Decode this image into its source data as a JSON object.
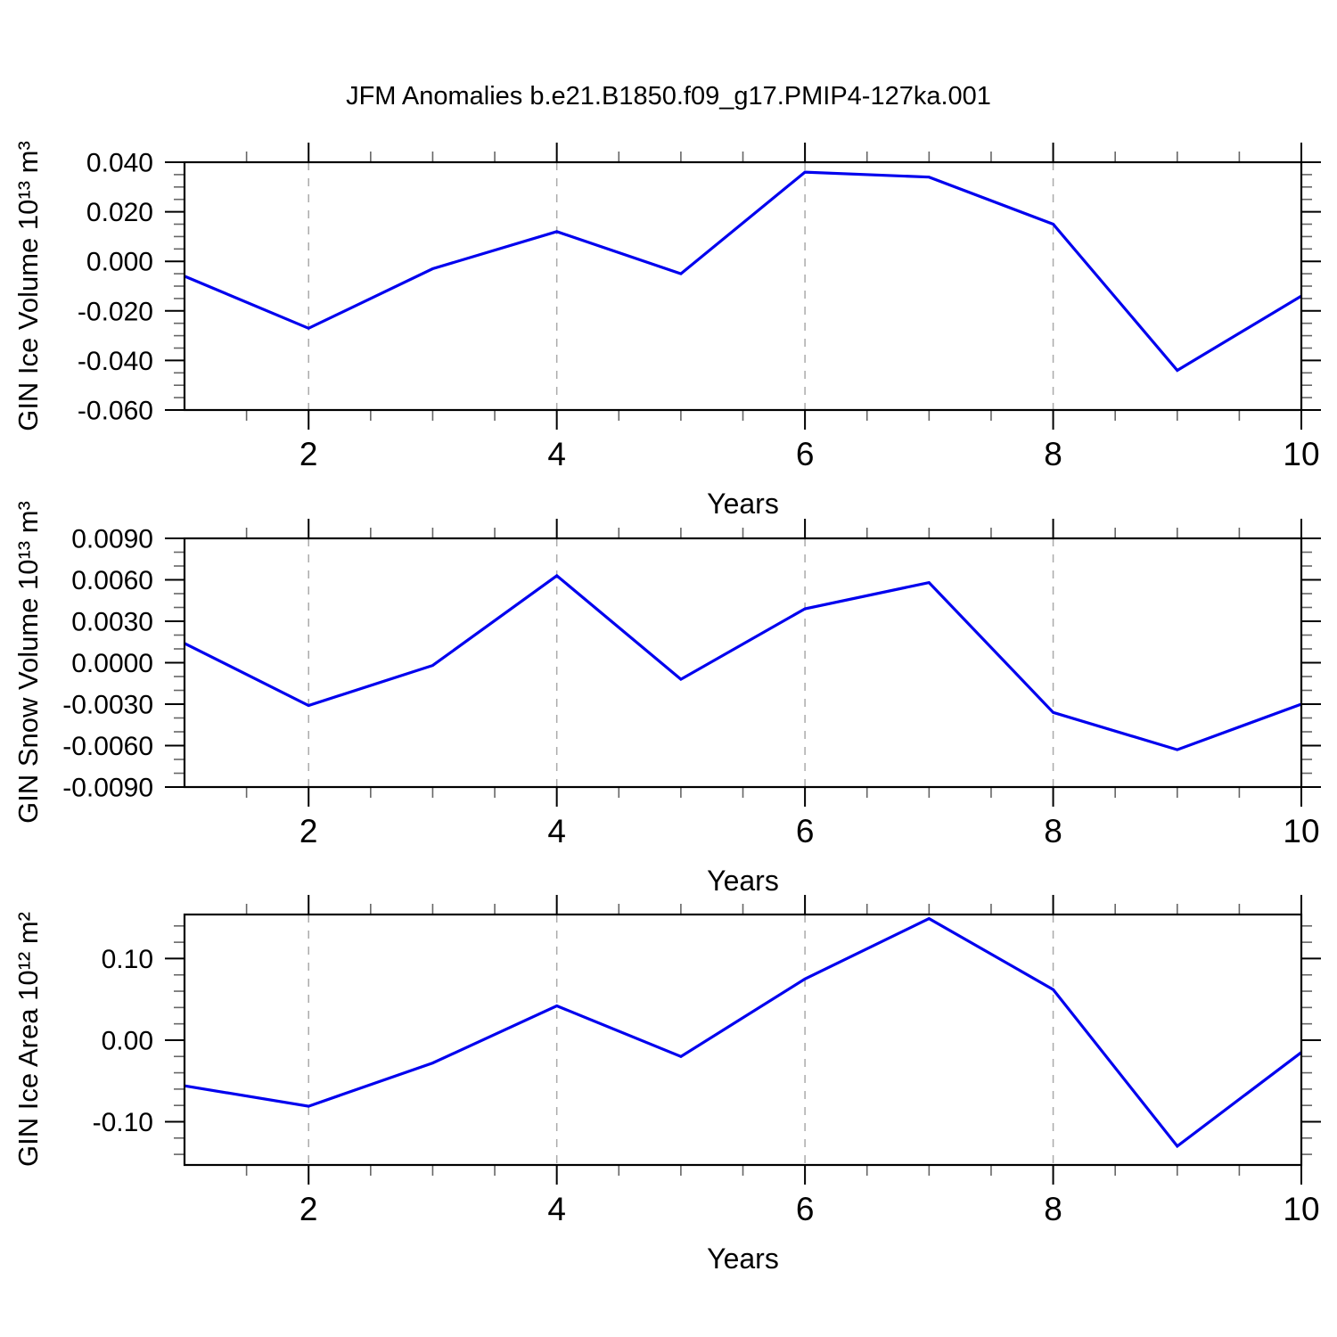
{
  "title": "JFM Anomalies b.e21.B1850.f09_g17.PMIP4-127ka.001",
  "colors": {
    "line": "#0000ee",
    "grid": "#aaaaaa",
    "frame": "#000000",
    "major_tick": "#000000",
    "minor_tick": "#666666",
    "text": "#000000"
  },
  "chart_data": [
    {
      "type": "line",
      "name": "gin-ice-volume",
      "ylabel": "GIN Ice Volume 10¹³ m³",
      "xlabel": "Years",
      "x": [
        1,
        2,
        3,
        4,
        5,
        6,
        7,
        8,
        9,
        10
      ],
      "values": [
        -0.006,
        -0.027,
        -0.003,
        0.012,
        -0.005,
        0.036,
        0.034,
        0.015,
        -0.044,
        -0.014
      ],
      "xlim": [
        1,
        10
      ],
      "ylim": [
        -0.06,
        0.04
      ],
      "yticks": {
        "values": [
          0.04,
          0.02,
          0.0,
          -0.02,
          -0.04,
          -0.06
        ],
        "labels": [
          "0.040",
          "0.020",
          "0.000",
          "-0.020",
          "-0.040",
          "-0.060"
        ]
      },
      "y_minor_step": 0.005,
      "xticks": {
        "values": [
          2,
          4,
          6,
          8,
          10
        ],
        "labels": [
          "2",
          "4",
          "6",
          "8",
          "10"
        ]
      },
      "x_minor_step": 0.5,
      "grid_x": [
        2,
        4,
        6,
        8
      ],
      "grid_style": "dashed",
      "legend": "none"
    },
    {
      "type": "line",
      "name": "gin-snow-volume",
      "ylabel": "GIN Snow Volume 10¹³ m³",
      "xlabel": "Years",
      "x": [
        1,
        2,
        3,
        4,
        5,
        6,
        7,
        8,
        9,
        10
      ],
      "values": [
        0.0014,
        -0.0031,
        -0.0002,
        0.0063,
        -0.0012,
        0.0039,
        0.0058,
        -0.0036,
        -0.0063,
        -0.003
      ],
      "xlim": [
        1,
        10
      ],
      "ylim": [
        -0.009,
        0.009
      ],
      "yticks": {
        "values": [
          0.009,
          0.006,
          0.003,
          0.0,
          -0.003,
          -0.006,
          -0.009
        ],
        "labels": [
          "0.0090",
          "0.0060",
          "0.0030",
          "0.0000",
          "-0.0030",
          "-0.0060",
          "-0.0090"
        ]
      },
      "y_minor_step": 0.001,
      "xticks": {
        "values": [
          2,
          4,
          6,
          8,
          10
        ],
        "labels": [
          "2",
          "4",
          "6",
          "8",
          "10"
        ]
      },
      "x_minor_step": 0.5,
      "grid_x": [
        2,
        4,
        6,
        8
      ],
      "grid_style": "dashed",
      "legend": "none"
    },
    {
      "type": "line",
      "name": "gin-ice-area",
      "ylabel": "GIN Ice Area 10¹² m²",
      "xlabel": "Years",
      "x": [
        1,
        2,
        3,
        4,
        5,
        6,
        7,
        8,
        9,
        10
      ],
      "values": [
        -0.056,
        -0.081,
        -0.028,
        0.042,
        -0.02,
        0.075,
        0.149,
        0.062,
        -0.13,
        -0.015
      ],
      "xlim": [
        1,
        10
      ],
      "ylim": [
        -0.153,
        0.154
      ],
      "yticks": {
        "values": [
          0.1,
          0.0,
          -0.1
        ],
        "labels": [
          "0.10",
          "0.00",
          "-0.10"
        ]
      },
      "y_minor_step": 0.02,
      "xticks": {
        "values": [
          2,
          4,
          6,
          8,
          10
        ],
        "labels": [
          "2",
          "4",
          "6",
          "8",
          "10"
        ]
      },
      "x_minor_step": 0.5,
      "grid_x": [
        2,
        4,
        6,
        8
      ],
      "grid_style": "dashed",
      "legend": "none"
    }
  ]
}
